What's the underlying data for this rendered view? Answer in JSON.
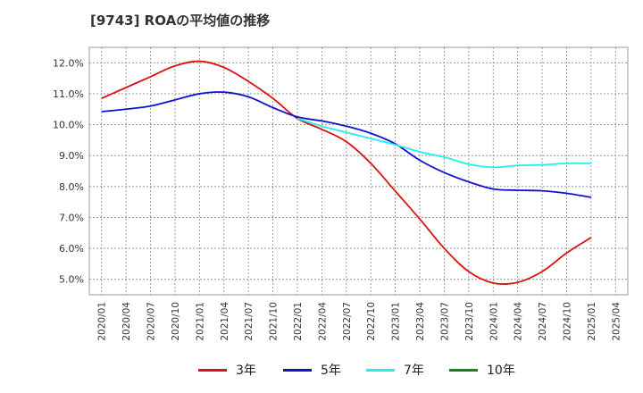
{
  "chart_data": {
    "type": "line",
    "title": "[9743]  ROAの平均値の推移",
    "x": [
      "2020/01",
      "2020/04",
      "2020/07",
      "2020/10",
      "2021/01",
      "2021/04",
      "2021/07",
      "2021/10",
      "2022/01",
      "2022/04",
      "2022/07",
      "2022/10",
      "2023/01",
      "2023/04",
      "2023/07",
      "2023/10",
      "2024/01",
      "2024/04",
      "2024/07",
      "2024/10",
      "2025/01",
      "2025/04"
    ],
    "xlabel": "",
    "ylabel": "",
    "ylim": [
      4.5,
      12.5
    ],
    "yticks": [
      5.0,
      6.0,
      7.0,
      8.0,
      9.0,
      10.0,
      11.0,
      12.0
    ],
    "ytick_labels": [
      "5.0%",
      "6.0%",
      "7.0%",
      "8.0%",
      "9.0%",
      "10.0%",
      "11.0%",
      "12.0%"
    ],
    "grid": true,
    "legend_position": "bottom",
    "series": [
      {
        "name": "3年",
        "color": "#dd1111",
        "values": [
          10.85,
          11.2,
          11.55,
          11.9,
          12.05,
          11.85,
          11.4,
          10.85,
          10.2,
          9.85,
          9.45,
          8.75,
          7.85,
          6.95,
          6.0,
          5.25,
          4.88,
          4.9,
          5.25,
          5.85,
          6.35,
          null
        ]
      },
      {
        "name": "5年",
        "color": "#1111cc",
        "values": [
          10.42,
          10.5,
          10.6,
          10.8,
          11.0,
          11.05,
          10.9,
          10.55,
          10.25,
          10.12,
          9.95,
          9.72,
          9.38,
          8.85,
          8.45,
          8.15,
          7.92,
          7.88,
          7.86,
          7.78,
          7.65,
          null
        ]
      },
      {
        "name": "7年",
        "color": "#22eeee",
        "values": [
          null,
          null,
          null,
          null,
          null,
          null,
          null,
          null,
          10.2,
          9.95,
          9.75,
          9.55,
          9.35,
          9.12,
          8.95,
          8.72,
          8.62,
          8.68,
          8.7,
          8.75,
          8.75,
          null
        ]
      },
      {
        "name": "10年",
        "color": "#118811",
        "values": [
          null,
          null,
          null,
          null,
          null,
          null,
          null,
          null,
          null,
          null,
          null,
          null,
          null,
          null,
          null,
          null,
          null,
          null,
          null,
          null,
          null,
          null
        ]
      }
    ]
  }
}
